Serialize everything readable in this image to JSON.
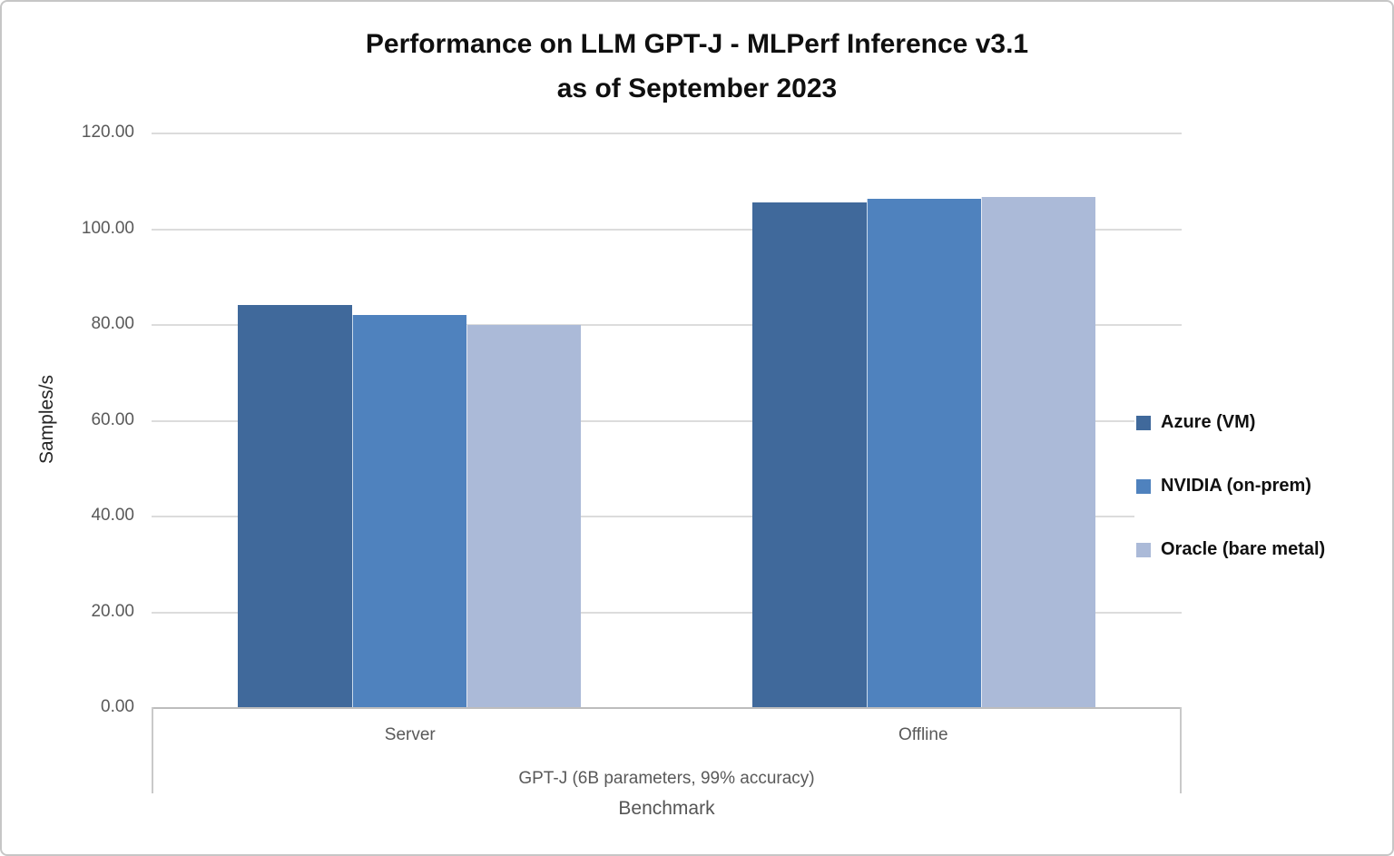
{
  "chart_data": {
    "type": "bar",
    "title": "Performance on LLM GPT-J - MLPerf Inference v3.1",
    "subtitle": "as of September 2023",
    "categories": [
      "Server",
      "Offline"
    ],
    "group_label": "GPT-J (6B parameters, 99% accuracy)",
    "xlabel": "Benchmark",
    "ylabel": "Samples/s",
    "ylim": [
      0,
      120
    ],
    "ytick_step": 20,
    "ytick_labels": [
      "120.00",
      "100.00",
      "80.00",
      "60.00",
      "40.00",
      "20.00",
      "0.00"
    ],
    "grid": true,
    "legend_position": "right",
    "series": [
      {
        "name": "Azure (VM)",
        "color": "#40699B",
        "values": [
          84.0,
          105.5
        ]
      },
      {
        "name": "NVIDIA (on-prem)",
        "color": "#4F82BE",
        "values": [
          81.9,
          106.1
        ]
      },
      {
        "name": "Oracle (bare metal)",
        "color": "#ABBAD8",
        "values": [
          79.8,
          106.6
        ]
      }
    ],
    "colors": {
      "gridline": "#dcdcdc",
      "axis_line": "#bdbdbd",
      "tick_text": "#595959",
      "title_text": "#0f0f0f"
    }
  }
}
